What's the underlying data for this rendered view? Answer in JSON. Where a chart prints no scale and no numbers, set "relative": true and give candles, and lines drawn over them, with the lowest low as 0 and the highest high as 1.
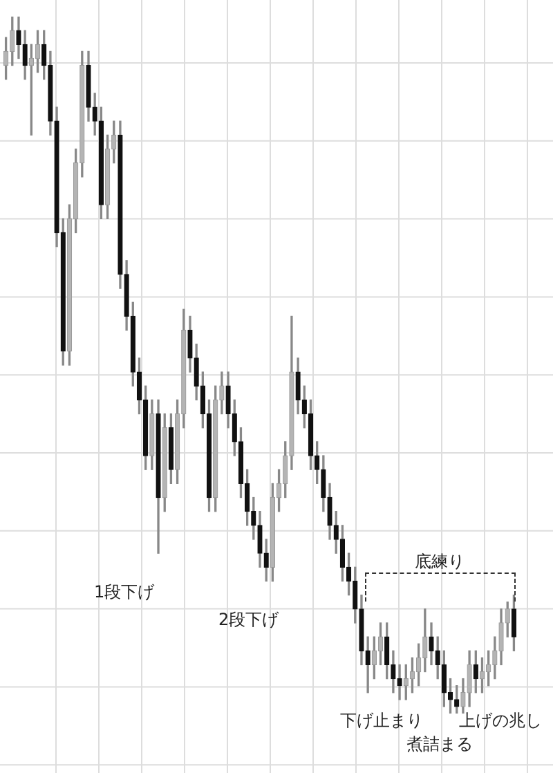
{
  "chart_data": {
    "type": "candlestick",
    "relative": true,
    "grid": true,
    "categories": [
      null,
      null,
      null,
      null,
      null,
      null,
      null,
      null,
      null,
      null,
      null,
      null,
      null,
      null,
      null,
      null,
      null,
      null,
      null,
      null,
      null,
      null,
      null,
      null,
      null,
      null,
      null,
      null,
      null,
      null,
      null,
      null,
      null,
      null,
      null,
      null,
      null,
      null,
      null,
      null,
      null,
      null,
      null,
      null,
      null,
      null,
      null,
      null,
      null,
      null,
      null,
      null,
      null,
      null,
      null,
      null,
      null,
      null,
      null,
      null,
      null,
      null,
      null,
      null,
      null,
      null,
      null,
      null,
      null,
      null,
      null,
      null,
      null,
      null,
      null,
      null,
      null,
      null,
      null,
      null,
      null
    ],
    "ohlc": [
      [
        0.93,
        0.97,
        0.91,
        0.95
      ],
      [
        0.95,
        1.0,
        0.93,
        0.98
      ],
      [
        0.98,
        1.0,
        0.94,
        0.96
      ],
      [
        0.96,
        0.98,
        0.91,
        0.93
      ],
      [
        0.93,
        0.96,
        0.83,
        0.94
      ],
      [
        0.94,
        0.98,
        0.92,
        0.96
      ],
      [
        0.96,
        0.98,
        0.91,
        0.93
      ],
      [
        0.93,
        0.95,
        0.83,
        0.85
      ],
      [
        0.85,
        0.87,
        0.67,
        0.69
      ],
      [
        0.69,
        0.71,
        0.5,
        0.52
      ],
      [
        0.52,
        0.73,
        0.5,
        0.71
      ],
      [
        0.71,
        0.81,
        0.69,
        0.79
      ],
      [
        0.79,
        0.95,
        0.77,
        0.93
      ],
      [
        0.93,
        0.95,
        0.85,
        0.87
      ],
      [
        0.87,
        0.89,
        0.83,
        0.85
      ],
      [
        0.85,
        0.87,
        0.71,
        0.73
      ],
      [
        0.73,
        0.83,
        0.71,
        0.81
      ],
      [
        0.81,
        0.85,
        0.79,
        0.83
      ],
      [
        0.83,
        0.85,
        0.61,
        0.63
      ],
      [
        0.63,
        0.65,
        0.55,
        0.57
      ],
      [
        0.57,
        0.59,
        0.47,
        0.49
      ],
      [
        0.49,
        0.51,
        0.43,
        0.45
      ],
      [
        0.45,
        0.47,
        0.35,
        0.37
      ],
      [
        0.37,
        0.45,
        0.35,
        0.43
      ],
      [
        0.43,
        0.45,
        0.23,
        0.31
      ],
      [
        0.31,
        0.43,
        0.29,
        0.41
      ],
      [
        0.41,
        0.43,
        0.33,
        0.35
      ],
      [
        0.35,
        0.45,
        0.33,
        0.43
      ],
      [
        0.43,
        0.58,
        0.41,
        0.55
      ],
      [
        0.55,
        0.57,
        0.49,
        0.51
      ],
      [
        0.51,
        0.53,
        0.45,
        0.47
      ],
      [
        0.47,
        0.49,
        0.41,
        0.43
      ],
      [
        0.43,
        0.45,
        0.29,
        0.31
      ],
      [
        0.31,
        0.47,
        0.29,
        0.45
      ],
      [
        0.45,
        0.49,
        0.43,
        0.47
      ],
      [
        0.47,
        0.49,
        0.41,
        0.43
      ],
      [
        0.43,
        0.45,
        0.37,
        0.39
      ],
      [
        0.39,
        0.41,
        0.31,
        0.33
      ],
      [
        0.33,
        0.35,
        0.27,
        0.29
      ],
      [
        0.29,
        0.31,
        0.25,
        0.27
      ],
      [
        0.27,
        0.29,
        0.21,
        0.23
      ],
      [
        0.23,
        0.25,
        0.19,
        0.21
      ],
      [
        0.21,
        0.33,
        0.19,
        0.31
      ],
      [
        0.31,
        0.35,
        0.29,
        0.33
      ],
      [
        0.33,
        0.39,
        0.31,
        0.37
      ],
      [
        0.37,
        0.57,
        0.35,
        0.49
      ],
      [
        0.49,
        0.51,
        0.43,
        0.45
      ],
      [
        0.45,
        0.47,
        0.41,
        0.43
      ],
      [
        0.43,
        0.45,
        0.35,
        0.37
      ],
      [
        0.37,
        0.39,
        0.33,
        0.35
      ],
      [
        0.35,
        0.37,
        0.29,
        0.31
      ],
      [
        0.31,
        0.33,
        0.25,
        0.27
      ],
      [
        0.27,
        0.29,
        0.23,
        0.25
      ],
      [
        0.25,
        0.27,
        0.19,
        0.21
      ],
      [
        0.21,
        0.23,
        0.17,
        0.19
      ],
      [
        0.19,
        0.21,
        0.13,
        0.15
      ],
      [
        0.15,
        0.17,
        0.07,
        0.09
      ],
      [
        0.09,
        0.11,
        0.03,
        0.07
      ],
      [
        0.07,
        0.11,
        0.05,
        0.09
      ],
      [
        0.09,
        0.13,
        0.07,
        0.11
      ],
      [
        0.11,
        0.13,
        0.05,
        0.07
      ],
      [
        0.07,
        0.09,
        0.03,
        0.05
      ],
      [
        0.05,
        0.07,
        0.02,
        0.04
      ],
      [
        0.04,
        0.07,
        0.02,
        0.05
      ],
      [
        0.05,
        0.08,
        0.03,
        0.06
      ],
      [
        0.06,
        0.1,
        0.04,
        0.08
      ],
      [
        0.08,
        0.15,
        0.06,
        0.11
      ],
      [
        0.11,
        0.13,
        0.07,
        0.09
      ],
      [
        0.09,
        0.11,
        0.05,
        0.07
      ],
      [
        0.07,
        0.09,
        0.01,
        0.03
      ],
      [
        0.03,
        0.05,
        0.0,
        0.02
      ],
      [
        0.02,
        0.04,
        0.0,
        0.01
      ],
      [
        0.01,
        0.05,
        0.0,
        0.03
      ],
      [
        0.03,
        0.09,
        0.01,
        0.07
      ],
      [
        0.07,
        0.09,
        0.03,
        0.05
      ],
      [
        0.05,
        0.08,
        0.03,
        0.06
      ],
      [
        0.06,
        0.09,
        0.04,
        0.07
      ],
      [
        0.07,
        0.11,
        0.05,
        0.09
      ],
      [
        0.09,
        0.15,
        0.07,
        0.13
      ],
      [
        0.13,
        0.16,
        0.11,
        0.15
      ],
      [
        0.15,
        0.17,
        0.09,
        0.11
      ]
    ],
    "annotations": [
      "1段下げ",
      "2段下げ",
      "底練り",
      "下げ止まり",
      "煮詰まる",
      "上げの兆し"
    ]
  }
}
